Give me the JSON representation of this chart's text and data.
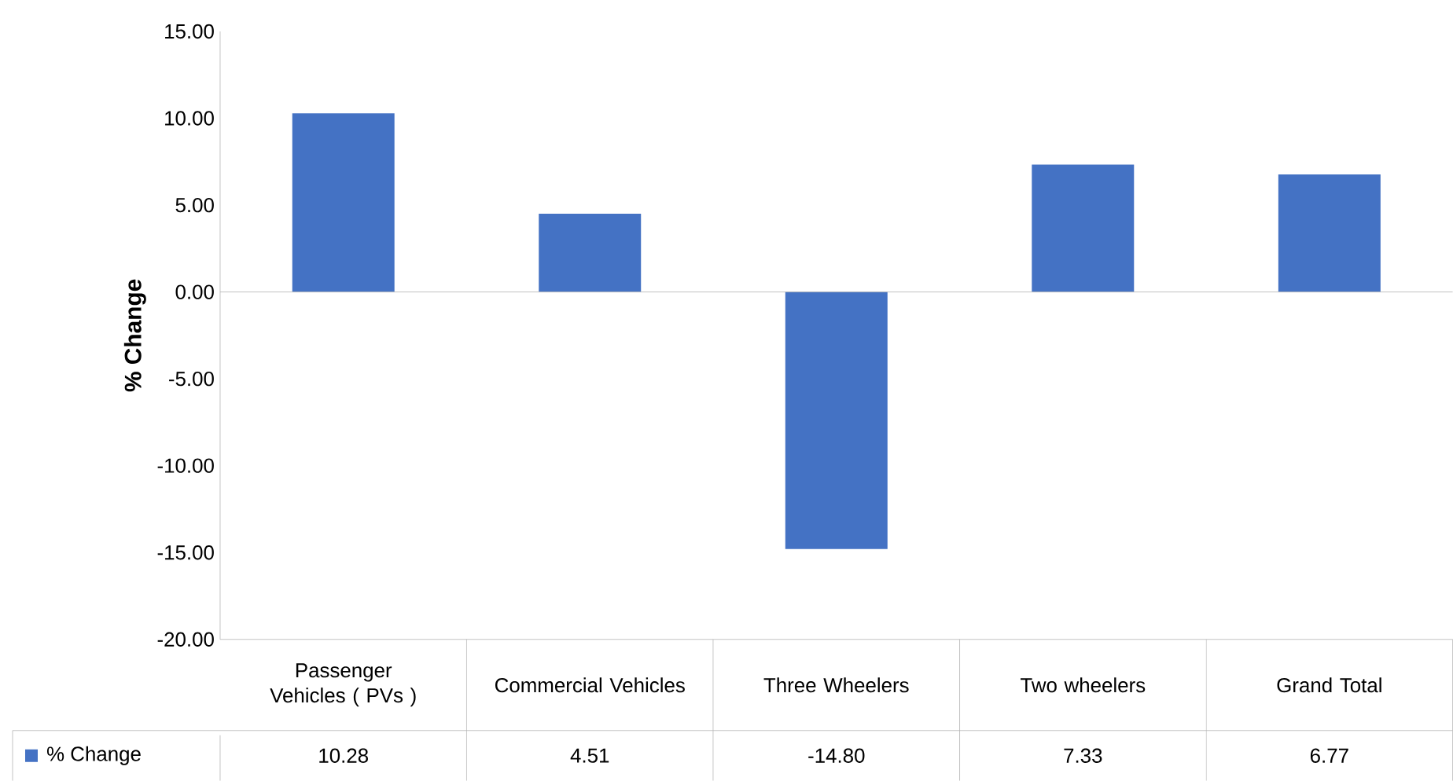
{
  "chart_data": {
    "type": "bar",
    "ylabel": "% Change",
    "categories": [
      "Passenger Vehicles ( PVs )",
      "Commercial Vehicles",
      "Three Wheelers",
      "Two wheelers",
      "Grand Total"
    ],
    "series": [
      {
        "name": "% Change",
        "color": "#4472c4",
        "values": [
          10.28,
          4.51,
          -14.8,
          7.33,
          6.77
        ],
        "value_labels": [
          "10.28",
          "4.51",
          "-14.80",
          "7.33",
          "6.77"
        ]
      }
    ],
    "ylim": [
      -20,
      15
    ],
    "yticks": [
      {
        "value": -20,
        "label": "-20.00"
      },
      {
        "value": -15,
        "label": "-15.00"
      },
      {
        "value": -10,
        "label": "-10.00"
      },
      {
        "value": -5,
        "label": "-5.00"
      },
      {
        "value": 0,
        "label": "0.00"
      },
      {
        "value": 5,
        "label": "5.00"
      },
      {
        "value": 10,
        "label": "10.00"
      },
      {
        "value": 15,
        "label": "15.00"
      }
    ],
    "legend": "bottom"
  }
}
